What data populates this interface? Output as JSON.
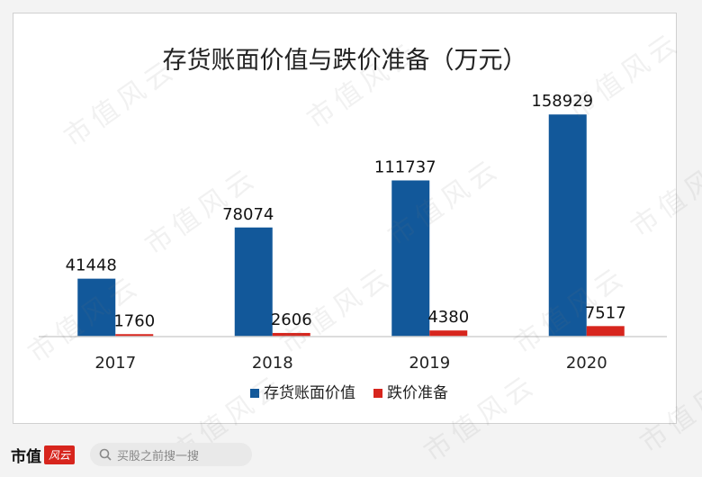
{
  "chart_data": {
    "type": "bar",
    "title": "存货账面价值与跌价准备（万元）",
    "categories": [
      "2017",
      "2018",
      "2019",
      "2020"
    ],
    "series": [
      {
        "name": "存货账面价值",
        "values": [
          41448,
          78074,
          111737,
          158929
        ],
        "color": "#12589a"
      },
      {
        "name": "跌价准备",
        "values": [
          1760,
          2606,
          4380,
          7517
        ],
        "color": "#d7251d"
      }
    ],
    "ylim": [
      0,
      170000
    ],
    "grid": false,
    "legend": "bottom",
    "data_labels": true
  },
  "watermark": {
    "text": "市值风云"
  },
  "footer": {
    "brand_text": "市值",
    "brand_mark": "风云",
    "search_icon": "search-icon",
    "search_text": "买股之前搜一搜"
  }
}
